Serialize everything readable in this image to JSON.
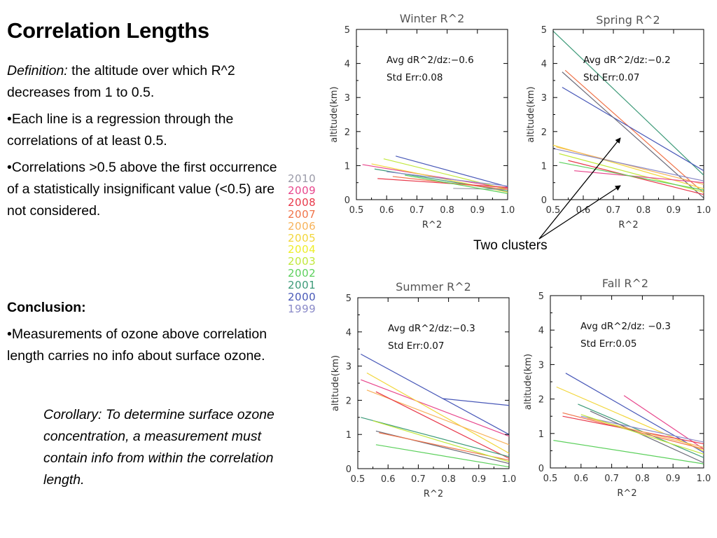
{
  "slide": {
    "title": "Correlation Lengths",
    "definition_label": "Definition:",
    "definition_text": " the altitude over which R^2 decreases from 1 to 0.5.",
    "bullets": [
      "•Each line is a regression through the correlations of at least 0.5.",
      "•Correlations >0.5 above the first occurrence of a statistically insignificant value (<0.5) are not considered."
    ],
    "conclusion_heading": "Conclusion:",
    "conclusion_bullet": "•Measurements of ozone above correlation length carries no info about surface ozone.",
    "corollary": "Corollary:  To determine surface ozone concentration, a measurement must contain info from within the correlation length.",
    "clusters_label": "Two clusters"
  },
  "legend": [
    {
      "year": "2010",
      "color": "#9a9aa8"
    },
    {
      "year": "2009",
      "color": "#e8468c"
    },
    {
      "year": "2008",
      "color": "#e8384a"
    },
    {
      "year": "2007",
      "color": "#f0744a"
    },
    {
      "year": "2006",
      "color": "#f7b35a"
    },
    {
      "year": "2005",
      "color": "#f2d63a"
    },
    {
      "year": "2004",
      "color": "#eeee2a"
    },
    {
      "year": "2003",
      "color": "#c2e83c"
    },
    {
      "year": "2002",
      "color": "#5cd05c"
    },
    {
      "year": "2001",
      "color": "#3c9a78"
    },
    {
      "year": "2000",
      "color": "#4858b8"
    },
    {
      "year": "1999",
      "color": "#8a8ac8"
    }
  ],
  "chart_data": [
    {
      "type": "line",
      "title": "Winter R^2",
      "xlabel": "R^2",
      "ylabel": "altitude(km)",
      "xlim": [
        0.5,
        1.0
      ],
      "ylim": [
        0,
        5
      ],
      "x_ticks": [
        "0.5",
        "0.6",
        "0.7",
        "0.8",
        "0.9",
        "1.0"
      ],
      "y_ticks": [
        "0",
        "1",
        "2",
        "3",
        "4",
        "5"
      ],
      "annotation": [
        "Avg dR^2/dz:−0.6",
        "Std Err:0.08"
      ],
      "series": [
        {
          "color": "#4858b8",
          "x": [
            0.63,
            1.0
          ],
          "y": [
            1.28,
            0.38
          ]
        },
        {
          "color": "#e8468c",
          "x": [
            0.52,
            1.0
          ],
          "y": [
            1.03,
            0.33
          ]
        },
        {
          "color": "#c2e83c",
          "x": [
            0.59,
            1.0
          ],
          "y": [
            1.2,
            0.3
          ]
        },
        {
          "color": "#f2d63a",
          "x": [
            0.55,
            1.0
          ],
          "y": [
            1.05,
            0.22
          ]
        },
        {
          "color": "#3c9a78",
          "x": [
            0.56,
            1.0
          ],
          "y": [
            0.9,
            0.25
          ]
        },
        {
          "color": "#e8384a",
          "x": [
            0.57,
            1.0
          ],
          "y": [
            0.62,
            0.36
          ]
        },
        {
          "color": "#9a9aa8",
          "x": [
            0.82,
            1.0
          ],
          "y": [
            0.33,
            0.3
          ]
        },
        {
          "color": "#8a8ac8",
          "x": [
            0.6,
            1.0
          ],
          "y": [
            0.82,
            0.4
          ]
        },
        {
          "color": "#f0744a",
          "x": [
            0.62,
            1.0
          ],
          "y": [
            0.68,
            0.3
          ]
        },
        {
          "color": "#5cd05c",
          "x": [
            0.66,
            1.0
          ],
          "y": [
            0.72,
            0.18
          ]
        }
      ]
    },
    {
      "type": "line",
      "title": "Spring R^2",
      "xlabel": "R^2",
      "ylabel": "altitude(km)",
      "xlim": [
        0.5,
        1.0
      ],
      "ylim": [
        0,
        5
      ],
      "x_ticks": [
        "0.5",
        "0.6",
        "0.7",
        "0.8",
        "0.9",
        "1.0"
      ],
      "y_ticks": [
        "0",
        "1",
        "2",
        "3",
        "4",
        "5"
      ],
      "annotation": [
        "Avg dR^2/dz:−0.2",
        "Std Err:0.07"
      ],
      "series": [
        {
          "color": "#3c9a78",
          "x": [
            0.5,
            1.0
          ],
          "y": [
            4.95,
            0.72
          ]
        },
        {
          "color": "#f0744a",
          "x": [
            0.54,
            1.0
          ],
          "y": [
            3.8,
            0.2
          ]
        },
        {
          "color": "#4858b8",
          "x": [
            0.53,
            1.0
          ],
          "y": [
            3.3,
            0.85
          ]
        },
        {
          "color": "#6a6a78",
          "x": [
            0.53,
            1.0
          ],
          "y": [
            3.75,
            0.05
          ]
        },
        {
          "color": "#f2d63a",
          "x": [
            0.5,
            1.0
          ],
          "y": [
            1.6,
            0.32
          ]
        },
        {
          "color": "#f7b35a",
          "x": [
            0.51,
            1.0
          ],
          "y": [
            1.55,
            0.45
          ]
        },
        {
          "color": "#c2e83c",
          "x": [
            0.52,
            1.0
          ],
          "y": [
            1.35,
            0.22
          ]
        },
        {
          "color": "#e8468c",
          "x": [
            0.57,
            1.0
          ],
          "y": [
            0.85,
            0.5
          ]
        },
        {
          "color": "#e8384a",
          "x": [
            0.55,
            1.0
          ],
          "y": [
            1.15,
            0.15
          ]
        },
        {
          "color": "#8a8ac8",
          "x": [
            0.5,
            1.0
          ],
          "y": [
            1.5,
            0.55
          ]
        },
        {
          "color": "#5cd05c",
          "x": [
            0.52,
            1.0
          ],
          "y": [
            1.1,
            0.28
          ]
        }
      ]
    },
    {
      "type": "line",
      "title": "Summer R^2",
      "xlabel": "R^2",
      "ylabel": "altitude(km)",
      "xlim": [
        0.5,
        1.0
      ],
      "ylim": [
        0,
        5
      ],
      "x_ticks": [
        "0.5",
        "0.6",
        "0.7",
        "0.8",
        "0.9",
        "1.0"
      ],
      "y_ticks": [
        "0",
        "1",
        "2",
        "3",
        "4",
        "5"
      ],
      "annotation": [
        "Avg dR^2/dz:−0.3",
        "Std Err:0.07"
      ],
      "series": [
        {
          "color": "#4858b8",
          "x": [
            0.51,
            1.0
          ],
          "y": [
            3.35,
            1.0
          ]
        },
        {
          "color": "#4858b8",
          "x": [
            0.78,
            1.0
          ],
          "y": [
            2.05,
            1.85
          ]
        },
        {
          "color": "#e8468c",
          "x": [
            0.51,
            1.0
          ],
          "y": [
            2.6,
            0.95
          ]
        },
        {
          "color": "#f2d63a",
          "x": [
            0.53,
            1.0
          ],
          "y": [
            2.8,
            0.45
          ]
        },
        {
          "color": "#f7b35a",
          "x": [
            0.53,
            1.0
          ],
          "y": [
            2.3,
            0.7
          ]
        },
        {
          "color": "#e8384a",
          "x": [
            0.56,
            1.0
          ],
          "y": [
            2.25,
            0.3
          ]
        },
        {
          "color": "#3c9a78",
          "x": [
            0.51,
            1.0
          ],
          "y": [
            1.5,
            0.35
          ]
        },
        {
          "color": "#6a6a78",
          "x": [
            0.56,
            1.0
          ],
          "y": [
            1.1,
            0.15
          ]
        },
        {
          "color": "#f0744a",
          "x": [
            0.57,
            1.0
          ],
          "y": [
            1.05,
            0.25
          ]
        },
        {
          "color": "#5cd05c",
          "x": [
            0.56,
            1.0
          ],
          "y": [
            0.7,
            0.05
          ]
        },
        {
          "color": "#c2e83c",
          "x": [
            0.55,
            1.0
          ],
          "y": [
            1.4,
            0.2
          ]
        }
      ]
    },
    {
      "type": "line",
      "title": "Fall R^2",
      "xlabel": "R^2",
      "ylabel": "altitude(km)",
      "xlim": [
        0.5,
        1.0
      ],
      "ylim": [
        0,
        5
      ],
      "x_ticks": [
        "0.5",
        "0.6",
        "0.7",
        "0.8",
        "0.9",
        "1.0"
      ],
      "y_ticks": [
        "0",
        "1",
        "2",
        "3",
        "4",
        "5"
      ],
      "annotation": [
        "Avg dR^2/dz: −0.3",
        "Std Err:0.05"
      ],
      "series": [
        {
          "color": "#4858b8",
          "x": [
            0.55,
            1.0
          ],
          "y": [
            2.75,
            0.45
          ]
        },
        {
          "color": "#e8468c",
          "x": [
            0.74,
            1.0
          ],
          "y": [
            2.1,
            0.55
          ]
        },
        {
          "color": "#f2d63a",
          "x": [
            0.52,
            1.0
          ],
          "y": [
            2.35,
            0.5
          ]
        },
        {
          "color": "#3c9a78",
          "x": [
            0.59,
            1.0
          ],
          "y": [
            1.85,
            0.3
          ]
        },
        {
          "color": "#f0744a",
          "x": [
            0.54,
            1.0
          ],
          "y": [
            1.6,
            0.55
          ]
        },
        {
          "color": "#e8384a",
          "x": [
            0.54,
            1.0
          ],
          "y": [
            1.5,
            0.7
          ]
        },
        {
          "color": "#8a8ac8",
          "x": [
            0.6,
            1.0
          ],
          "y": [
            1.5,
            0.75
          ]
        },
        {
          "color": "#6a6a78",
          "x": [
            0.63,
            1.0
          ],
          "y": [
            1.65,
            0.15
          ]
        },
        {
          "color": "#f7b35a",
          "x": [
            0.62,
            1.0
          ],
          "y": [
            1.45,
            0.6
          ]
        },
        {
          "color": "#5cd05c",
          "x": [
            0.51,
            1.0
          ],
          "y": [
            0.8,
            0.12
          ]
        },
        {
          "color": "#c2e83c",
          "x": [
            0.6,
            1.0
          ],
          "y": [
            1.55,
            0.4
          ]
        }
      ]
    }
  ]
}
